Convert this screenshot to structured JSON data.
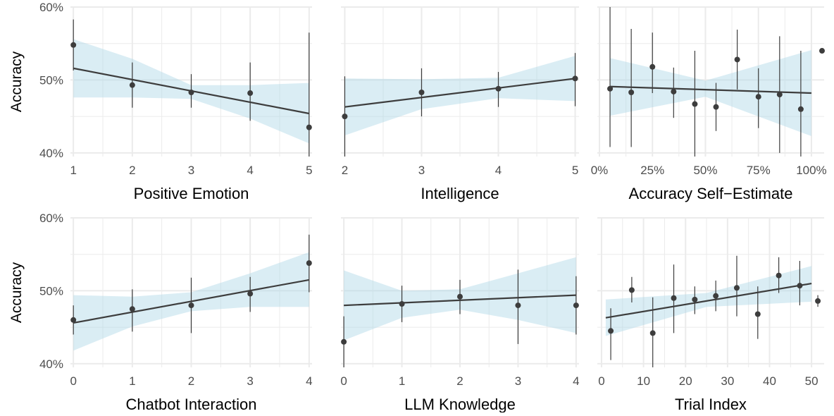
{
  "y_axis_label": "Accuracy",
  "colors": {
    "band": "#add8e6",
    "line": "#3d3d3d",
    "point": "#3d3d3d",
    "grid": "#ebebeb",
    "text": "#4d4d4d"
  },
  "chart_data": [
    {
      "type": "scatter",
      "xlabel": "Positive Emotion",
      "ylabel": "Accuracy",
      "xlim": [
        0.95,
        5.05
      ],
      "ylim": [
        39.5,
        60
      ],
      "x_ticks": [
        1,
        2,
        3,
        4,
        5
      ],
      "x_tick_labels": [
        "1",
        "2",
        "3",
        "4",
        "5"
      ],
      "y_ticks": [
        40,
        50,
        60
      ],
      "y_tick_labels": [
        "40%",
        "50%",
        "60%"
      ],
      "points": [
        {
          "x": 1,
          "y": 54.8,
          "lo": 51.3,
          "hi": 58.3
        },
        {
          "x": 2,
          "y": 49.3,
          "lo": 46.2,
          "hi": 52.4
        },
        {
          "x": 3,
          "y": 48.3,
          "lo": 46.2,
          "hi": 50.8
        },
        {
          "x": 4,
          "y": 48.2,
          "lo": 44.4,
          "hi": 52.4
        },
        {
          "x": 5,
          "y": 43.5,
          "lo": 39.5,
          "hi": 56.5
        }
      ],
      "fit": {
        "x": [
          1,
          5
        ],
        "y": [
          51.6,
          45.4
        ]
      },
      "band": {
        "x": [
          1,
          2,
          3,
          4,
          5
        ],
        "lo": [
          47.6,
          47.6,
          47.4,
          44.7,
          41.3
        ],
        "hi": [
          55.6,
          52.9,
          49.3,
          49.3,
          49.6
        ]
      }
    },
    {
      "type": "scatter",
      "xlabel": "Intelligence",
      "ylabel": "Accuracy",
      "xlim": [
        1.95,
        5.05
      ],
      "ylim": [
        39.5,
        60
      ],
      "x_ticks": [
        2,
        3,
        4,
        5
      ],
      "x_tick_labels": [
        "2",
        "3",
        "4",
        "5"
      ],
      "y_ticks": [
        40,
        50,
        60
      ],
      "y_tick_labels": [
        "40%",
        "50%",
        "60%"
      ],
      "points": [
        {
          "x": 2,
          "y": 45.0,
          "lo": 39.5,
          "hi": 50.5
        },
        {
          "x": 3,
          "y": 48.3,
          "lo": 45.0,
          "hi": 51.6
        },
        {
          "x": 4,
          "y": 48.8,
          "lo": 46.3,
          "hi": 51.1
        },
        {
          "x": 5,
          "y": 50.2,
          "lo": 46.4,
          "hi": 53.7
        }
      ],
      "fit": {
        "x": [
          2,
          5
        ],
        "y": [
          46.3,
          50.2
        ]
      },
      "band": {
        "x": [
          2,
          3,
          4,
          5
        ],
        "lo": [
          42.4,
          46.0,
          47.5,
          47.1
        ],
        "hi": [
          50.2,
          50.1,
          50.3,
          53.3
        ]
      }
    },
    {
      "type": "scatter",
      "xlabel": "Accuracy Self−Estimate",
      "ylabel": "Accuracy",
      "xlim": [
        -1,
        106
      ],
      "ylim": [
        39.5,
        60
      ],
      "x_ticks": [
        0,
        25,
        50,
        75,
        100
      ],
      "x_tick_labels": [
        "0%",
        "25%",
        "50%",
        "75%",
        "100%"
      ],
      "y_ticks": [
        40,
        50,
        60
      ],
      "y_tick_labels": [
        "40%",
        "50%",
        "60%"
      ],
      "points": [
        {
          "x": 5,
          "y": 48.8,
          "lo": 40.8,
          "hi": 60
        },
        {
          "x": 15,
          "y": 48.3,
          "lo": 40.8,
          "hi": 57.0
        },
        {
          "x": 25,
          "y": 51.8,
          "lo": 48.2,
          "hi": 56.5
        },
        {
          "x": 35,
          "y": 48.4,
          "lo": 44.8,
          "hi": 51.7
        },
        {
          "x": 45,
          "y": 46.7,
          "lo": 39.5,
          "hi": 54.0
        },
        {
          "x": 55,
          "y": 46.3,
          "lo": 43.0,
          "hi": 49.6
        },
        {
          "x": 65,
          "y": 52.8,
          "lo": 48.7,
          "hi": 56.9
        },
        {
          "x": 75,
          "y": 47.7,
          "lo": 43.4,
          "hi": 51.6
        },
        {
          "x": 85,
          "y": 48.0,
          "lo": 40.0,
          "hi": 56.0
        },
        {
          "x": 95,
          "y": 46.0,
          "lo": 39.5,
          "hi": 54.0
        },
        {
          "x": 105,
          "y": 54.0,
          "lo": 54.0,
          "hi": 54.0
        }
      ],
      "fit": {
        "x": [
          5,
          100
        ],
        "y": [
          49.1,
          48.2
        ]
      },
      "band": {
        "x": [
          5,
          50,
          100
        ],
        "lo": [
          45.1,
          47.7,
          42.3
        ],
        "hi": [
          53.0,
          49.9,
          54.1
        ]
      }
    },
    {
      "type": "scatter",
      "xlabel": "Chatbot Interaction",
      "ylabel": "Accuracy",
      "xlim": [
        -0.05,
        4.05
      ],
      "ylim": [
        39.5,
        60
      ],
      "x_ticks": [
        0,
        1,
        2,
        3,
        4
      ],
      "x_tick_labels": [
        "0",
        "1",
        "2",
        "3",
        "4"
      ],
      "y_ticks": [
        40,
        50,
        60
      ],
      "y_tick_labels": [
        "40%",
        "50%",
        "60%"
      ],
      "points": [
        {
          "x": 0,
          "y": 46.0,
          "lo": 44.0,
          "hi": 48.0
        },
        {
          "x": 1,
          "y": 47.5,
          "lo": 44.4,
          "hi": 50.2
        },
        {
          "x": 2,
          "y": 48.0,
          "lo": 44.2,
          "hi": 51.8
        },
        {
          "x": 3,
          "y": 49.6,
          "lo": 47.1,
          "hi": 51.9
        },
        {
          "x": 4,
          "y": 53.8,
          "lo": 49.8,
          "hi": 57.7
        }
      ],
      "fit": {
        "x": [
          0,
          4
        ],
        "y": [
          45.6,
          51.5
        ]
      },
      "band": {
        "x": [
          0,
          1,
          2,
          3,
          4
        ],
        "lo": [
          41.8,
          45.1,
          47.2,
          47.8,
          47.8
        ],
        "hi": [
          49.4,
          49.2,
          49.8,
          52.4,
          55.3
        ]
      }
    },
    {
      "type": "scatter",
      "xlabel": "LLM Knowledge",
      "ylabel": "Accuracy",
      "xlim": [
        -0.05,
        4.05
      ],
      "ylim": [
        39.5,
        60
      ],
      "x_ticks": [
        0,
        1,
        2,
        3,
        4
      ],
      "x_tick_labels": [
        "0",
        "1",
        "2",
        "3",
        "4"
      ],
      "y_ticks": [
        40,
        50,
        60
      ],
      "y_tick_labels": [
        "40%",
        "50%",
        "60%"
      ],
      "points": [
        {
          "x": 0,
          "y": 43.0,
          "lo": 39.5,
          "hi": 46.5
        },
        {
          "x": 1,
          "y": 48.2,
          "lo": 45.7,
          "hi": 50.7
        },
        {
          "x": 2,
          "y": 49.2,
          "lo": 46.8,
          "hi": 51.5
        },
        {
          "x": 3,
          "y": 48.0,
          "lo": 42.7,
          "hi": 52.9
        },
        {
          "x": 4,
          "y": 48.0,
          "lo": 44.0,
          "hi": 52.0
        }
      ],
      "fit": {
        "x": [
          0,
          4
        ],
        "y": [
          48.0,
          49.4
        ]
      },
      "band": {
        "x": [
          0,
          1,
          2,
          3,
          4
        ],
        "lo": [
          43.2,
          46.3,
          47.4,
          46.0,
          44.2
        ],
        "hi": [
          52.8,
          50.0,
          50.2,
          52.4,
          54.6
        ]
      }
    },
    {
      "type": "scatter",
      "xlabel": "Trial Index",
      "ylabel": "Accuracy",
      "xlim": [
        -1,
        53
      ],
      "ylim": [
        39.5,
        60
      ],
      "x_ticks": [
        0,
        10,
        20,
        30,
        40,
        50
      ],
      "x_tick_labels": [
        "0",
        "10",
        "20",
        "30",
        "40",
        "50"
      ],
      "y_ticks": [
        40,
        50,
        60
      ],
      "y_tick_labels": [
        "40%",
        "50%",
        "60%"
      ],
      "points": [
        {
          "x": 2.2,
          "y": 44.5,
          "lo": 40.5,
          "hi": 47.6
        },
        {
          "x": 7.2,
          "y": 50.1,
          "lo": 48.4,
          "hi": 51.9
        },
        {
          "x": 12.2,
          "y": 44.2,
          "lo": 39.5,
          "hi": 49.1
        },
        {
          "x": 17.2,
          "y": 49.0,
          "lo": 44.2,
          "hi": 53.6
        },
        {
          "x": 22.2,
          "y": 48.8,
          "lo": 46.8,
          "hi": 50.6
        },
        {
          "x": 27.2,
          "y": 49.3,
          "lo": 47.2,
          "hi": 51.4
        },
        {
          "x": 32.2,
          "y": 50.4,
          "lo": 46.5,
          "hi": 54.8
        },
        {
          "x": 37.2,
          "y": 46.8,
          "lo": 43.4,
          "hi": 50.6
        },
        {
          "x": 42.2,
          "y": 52.1,
          "lo": 49.7,
          "hi": 54.6
        },
        {
          "x": 47.2,
          "y": 50.7,
          "lo": 48.0,
          "hi": 54.1
        },
        {
          "x": 51.5,
          "y": 48.6,
          "lo": 47.8,
          "hi": 49.4
        }
      ],
      "fit": {
        "x": [
          1,
          50
        ],
        "y": [
          46.3,
          51.0
        ]
      },
      "band": {
        "x": [
          1,
          25,
          50
        ],
        "lo": [
          43.8,
          47.8,
          48.5
        ],
        "hi": [
          48.8,
          49.7,
          53.4
        ]
      }
    }
  ]
}
